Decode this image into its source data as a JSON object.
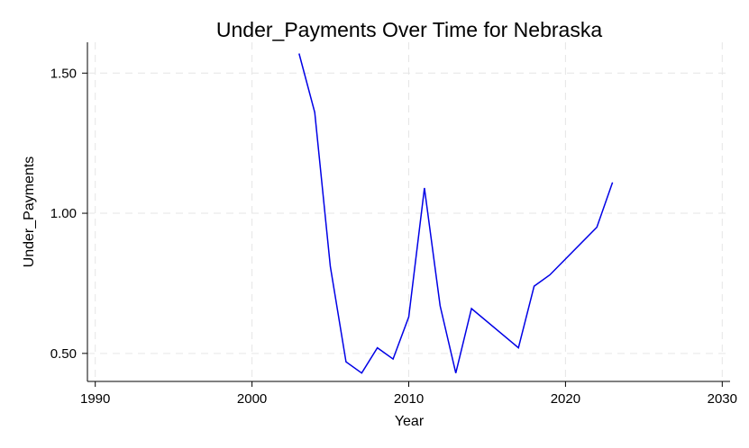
{
  "chart_data": {
    "type": "line",
    "title": "Under_Payments Over Time for Nebraska",
    "xlabel": "Year",
    "ylabel": "Under_Payments",
    "xlim": [
      1989.5,
      2030.5
    ],
    "ylim": [
      0.4,
      1.61
    ],
    "x_ticks": [
      1990,
      2000,
      2010,
      2020,
      2030
    ],
    "y_ticks": [
      0.5,
      1.0,
      1.5
    ],
    "y_tick_labels": [
      "0.50",
      "1.00",
      "1.50"
    ],
    "grid": true,
    "series_color": "#0000e6",
    "x": [
      2003,
      2004,
      2005,
      2006,
      2007,
      2008,
      2009,
      2010,
      2011,
      2012,
      2013,
      2014,
      2017,
      2018,
      2019,
      2022,
      2023
    ],
    "y": [
      1.57,
      1.36,
      0.81,
      0.47,
      0.43,
      0.52,
      0.48,
      0.63,
      1.09,
      0.67,
      0.43,
      0.66,
      0.52,
      0.74,
      0.78,
      0.95,
      1.11
    ]
  }
}
